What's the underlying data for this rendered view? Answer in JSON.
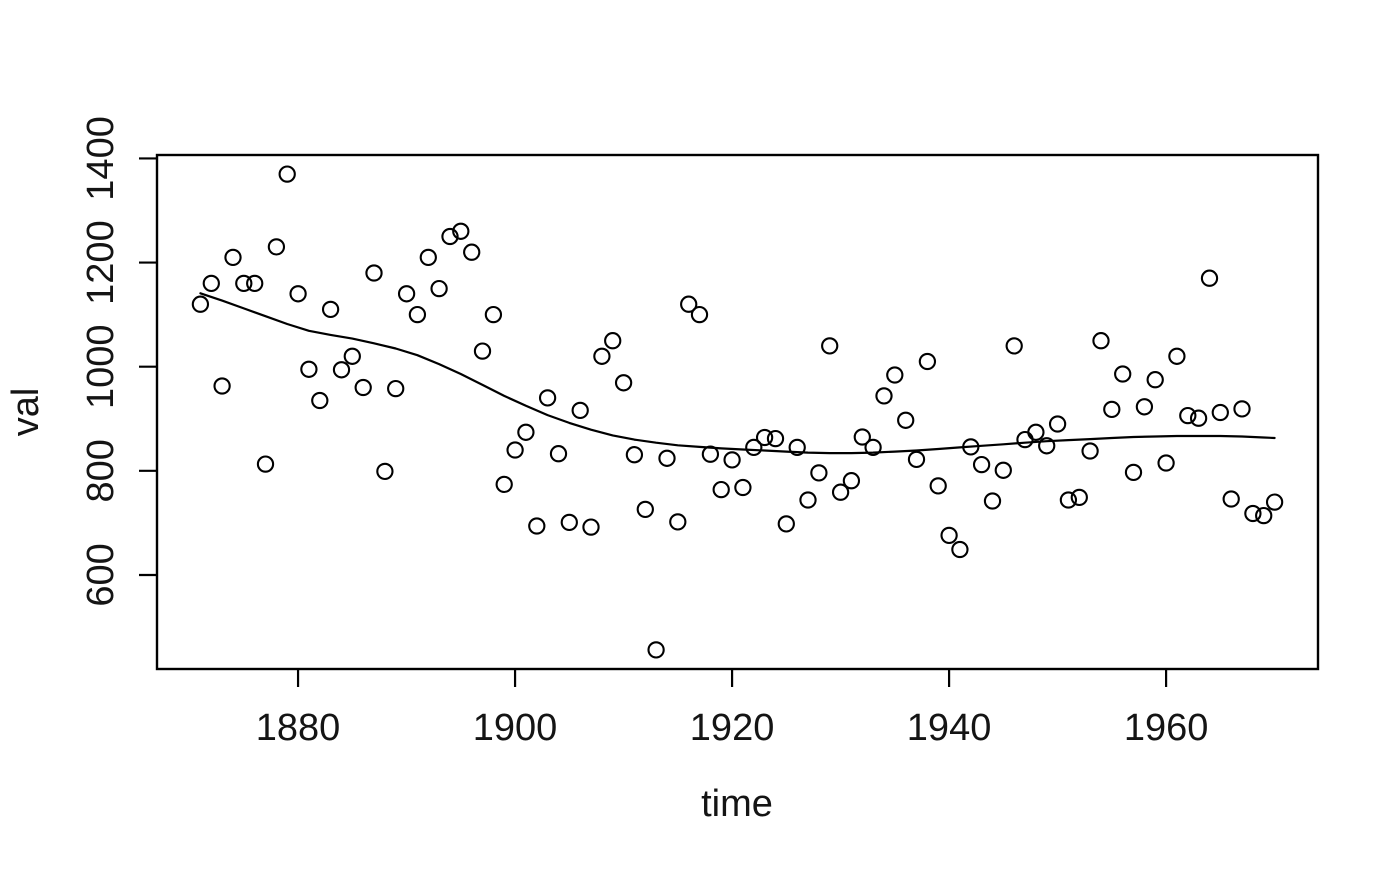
{
  "chart_data": {
    "type": "scatter",
    "title": "",
    "xlabel": "time",
    "ylabel": "val",
    "xlim": [
      1867.0,
      1974.0
    ],
    "ylim": [
      419.4,
      1406.6
    ],
    "xticks": [
      1880,
      1900,
      1920,
      1940,
      1960
    ],
    "yticks": [
      600,
      800,
      1000,
      1200,
      1400
    ],
    "grid": false,
    "legend": null,
    "colors": {
      "points": "#000000",
      "line": "#000000",
      "axis": "#000000",
      "text": "#141414",
      "background": "#ffffff"
    },
    "series": [
      {
        "name": "observed-points",
        "style": "open-circle",
        "x": [
          1871,
          1872,
          1873,
          1874,
          1875,
          1876,
          1877,
          1878,
          1879,
          1880,
          1881,
          1882,
          1883,
          1884,
          1885,
          1886,
          1887,
          1888,
          1889,
          1890,
          1891,
          1892,
          1893,
          1894,
          1895,
          1896,
          1897,
          1898,
          1899,
          1900,
          1901,
          1902,
          1903,
          1904,
          1905,
          1906,
          1907,
          1908,
          1909,
          1910,
          1911,
          1912,
          1913,
          1914,
          1915,
          1916,
          1917,
          1918,
          1919,
          1920,
          1921,
          1922,
          1923,
          1924,
          1925,
          1926,
          1927,
          1928,
          1929,
          1930,
          1931,
          1932,
          1933,
          1934,
          1935,
          1936,
          1937,
          1938,
          1939,
          1940,
          1941,
          1942,
          1943,
          1944,
          1945,
          1946,
          1947,
          1948,
          1949,
          1950,
          1951,
          1952,
          1953,
          1954,
          1955,
          1956,
          1957,
          1958,
          1959,
          1960,
          1961,
          1962,
          1963,
          1964,
          1965,
          1966,
          1967,
          1968,
          1969,
          1970
        ],
        "y": [
          1120,
          1160,
          963,
          1210,
          1160,
          1160,
          813,
          1230,
          1370,
          1140,
          995,
          935,
          1110,
          994,
          1020,
          960,
          1180,
          799,
          958,
          1140,
          1100,
          1210,
          1150,
          1250,
          1260,
          1220,
          1030,
          1100,
          774,
          840,
          874,
          694,
          940,
          833,
          701,
          916,
          692,
          1020,
          1050,
          969,
          831,
          726,
          456,
          824,
          702,
          1120,
          1100,
          832,
          764,
          821,
          768,
          845,
          864,
          862,
          698,
          845,
          744,
          796,
          1040,
          759,
          781,
          865,
          845,
          944,
          984,
          897,
          822,
          1010,
          771,
          676,
          649,
          846,
          812,
          742,
          801,
          1040,
          860,
          874,
          848,
          890,
          744,
          749,
          838,
          1050,
          918,
          986,
          797,
          923,
          975,
          815,
          1020,
          906,
          901,
          1170,
          912,
          746,
          919,
          718,
          714,
          740
        ]
      },
      {
        "name": "smooth-trend-line",
        "style": "line",
        "points": [
          [
            1871,
            1141
          ],
          [
            1873,
            1127
          ],
          [
            1875,
            1112
          ],
          [
            1877,
            1097
          ],
          [
            1879,
            1082
          ],
          [
            1881,
            1069
          ],
          [
            1883,
            1061
          ],
          [
            1885,
            1054
          ],
          [
            1887,
            1045
          ],
          [
            1889,
            1035
          ],
          [
            1891,
            1022
          ],
          [
            1893,
            1005
          ],
          [
            1895,
            986
          ],
          [
            1897,
            965
          ],
          [
            1899,
            944
          ],
          [
            1901,
            925
          ],
          [
            1903,
            907
          ],
          [
            1905,
            892
          ],
          [
            1907,
            879
          ],
          [
            1909,
            868
          ],
          [
            1911,
            860
          ],
          [
            1913,
            854
          ],
          [
            1915,
            849
          ],
          [
            1917,
            846
          ],
          [
            1919,
            843
          ],
          [
            1921,
            841
          ],
          [
            1923,
            839
          ],
          [
            1925,
            837
          ],
          [
            1927,
            835
          ],
          [
            1929,
            834
          ],
          [
            1931,
            834
          ],
          [
            1933,
            835
          ],
          [
            1935,
            837
          ],
          [
            1937,
            839
          ],
          [
            1939,
            842
          ],
          [
            1941,
            845
          ],
          [
            1943,
            848
          ],
          [
            1945,
            851
          ],
          [
            1947,
            854
          ],
          [
            1949,
            857
          ],
          [
            1951,
            859
          ],
          [
            1953,
            861
          ],
          [
            1955,
            863
          ],
          [
            1957,
            865
          ],
          [
            1959,
            866
          ],
          [
            1961,
            867
          ],
          [
            1963,
            867
          ],
          [
            1965,
            867
          ],
          [
            1967,
            866
          ],
          [
            1969,
            864
          ],
          [
            1970,
            863
          ]
        ]
      }
    ]
  }
}
